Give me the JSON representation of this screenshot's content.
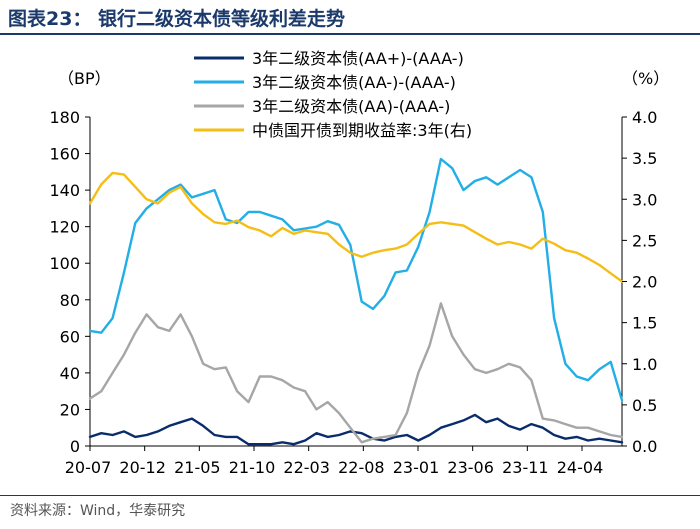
{
  "figure": {
    "title": "图表23：  银行二级资本债等级利差走势",
    "source": "资料来源：Wind，华泰研究"
  },
  "chart_data": {
    "type": "line",
    "left_axis_unit": "（BP）",
    "right_axis_unit": "（%）",
    "ylim_left": [
      0,
      180
    ],
    "ylim_right": [
      0.0,
      4.0
    ],
    "left_ticks": [
      "0",
      "20",
      "40",
      "60",
      "80",
      "100",
      "120",
      "140",
      "160",
      "180"
    ],
    "right_ticks": [
      "0.0",
      "0.5",
      "1.0",
      "1.5",
      "2.0",
      "2.5",
      "3.0",
      "3.5",
      "4.0"
    ],
    "x_ticks": [
      "20-07",
      "20-12",
      "21-05",
      "21-10",
      "22-03",
      "22-08",
      "23-01",
      "23-06",
      "23-11",
      "24-04"
    ],
    "x_range": [
      0,
      47
    ],
    "series": [
      {
        "name": "3年二级资本债(AA+)-(AAA-)",
        "axis": "left",
        "color": "#0a2c6b",
        "x": [
          0,
          1,
          2,
          3,
          4,
          5,
          6,
          7,
          8,
          9,
          10,
          11,
          12,
          13,
          14,
          15,
          16,
          17,
          18,
          19,
          20,
          21,
          22,
          23,
          24,
          25,
          26,
          27,
          28,
          29,
          30,
          31,
          32,
          33,
          34,
          35,
          36,
          37,
          38,
          39,
          40,
          41,
          42,
          43,
          44,
          45,
          46,
          47
        ],
        "values": [
          5,
          7,
          6,
          8,
          5,
          6,
          8,
          11,
          13,
          15,
          11,
          6,
          5,
          5,
          1,
          1,
          1,
          2,
          1,
          3,
          7,
          5,
          6,
          8,
          7,
          4,
          3,
          5,
          6,
          3,
          6,
          10,
          12,
          14,
          17,
          13,
          15,
          11,
          9,
          12,
          10,
          6,
          4,
          5,
          3,
          4,
          3,
          2
        ]
      },
      {
        "name": "3年二级资本债(AA-)-(AAA-)",
        "axis": "left",
        "color": "#22aee6",
        "x": [
          0,
          1,
          2,
          3,
          4,
          5,
          6,
          7,
          8,
          9,
          10,
          11,
          12,
          13,
          14,
          15,
          16,
          17,
          18,
          19,
          20,
          21,
          22,
          23,
          24,
          25,
          26,
          27,
          28,
          29,
          30,
          31,
          32,
          33,
          34,
          35,
          36,
          37,
          38,
          39,
          40,
          41,
          42,
          43,
          44,
          45,
          46,
          47
        ],
        "values": [
          63,
          62,
          70,
          95,
          122,
          130,
          135,
          140,
          143,
          136,
          138,
          140,
          124,
          122,
          128,
          128,
          126,
          124,
          118,
          119,
          120,
          123,
          121,
          110,
          79,
          75,
          82,
          95,
          96,
          109,
          128,
          157,
          152,
          140,
          145,
          147,
          143,
          147,
          151,
          147,
          128,
          70,
          45,
          38,
          36,
          42,
          46,
          25
        ]
      },
      {
        "name": "3年二级资本债(AA)-(AAA-)",
        "axis": "left",
        "color": "#a6a6a6",
        "x": [
          0,
          1,
          2,
          3,
          4,
          5,
          6,
          7,
          8,
          9,
          10,
          11,
          12,
          13,
          14,
          15,
          16,
          17,
          18,
          19,
          20,
          21,
          22,
          23,
          24,
          25,
          26,
          27,
          28,
          29,
          30,
          31,
          32,
          33,
          34,
          35,
          36,
          37,
          38,
          39,
          40,
          41,
          42,
          43,
          44,
          45,
          46,
          47
        ],
        "values": [
          26,
          30,
          40,
          50,
          62,
          72,
          65,
          63,
          72,
          60,
          45,
          42,
          43,
          30,
          24,
          38,
          38,
          36,
          32,
          30,
          20,
          24,
          18,
          10,
          2,
          4,
          5,
          6,
          18,
          40,
          55,
          78,
          60,
          50,
          42,
          40,
          42,
          45,
          43,
          36,
          15,
          14,
          12,
          10,
          10,
          8,
          6,
          5
        ]
      },
      {
        "name": "中债国开债到期收益率:3年(右)",
        "axis": "right",
        "color": "#f5be14",
        "x": [
          0,
          1,
          2,
          3,
          4,
          5,
          6,
          7,
          8,
          9,
          10,
          11,
          12,
          13,
          14,
          15,
          16,
          17,
          18,
          19,
          20,
          21,
          22,
          23,
          24,
          25,
          26,
          27,
          28,
          29,
          30,
          31,
          32,
          33,
          34,
          35,
          36,
          37,
          38,
          39,
          40,
          41,
          42,
          43,
          44,
          45,
          46,
          47
        ],
        "values": [
          2.95,
          3.18,
          3.32,
          3.3,
          3.15,
          3.0,
          2.95,
          3.08,
          3.15,
          2.95,
          2.82,
          2.72,
          2.7,
          2.74,
          2.66,
          2.62,
          2.55,
          2.65,
          2.58,
          2.62,
          2.6,
          2.58,
          2.45,
          2.35,
          2.3,
          2.35,
          2.38,
          2.4,
          2.45,
          2.58,
          2.7,
          2.72,
          2.7,
          2.68,
          2.6,
          2.52,
          2.45,
          2.48,
          2.45,
          2.4,
          2.52,
          2.46,
          2.38,
          2.35,
          2.28,
          2.2,
          2.1,
          2.0
        ]
      }
    ]
  }
}
